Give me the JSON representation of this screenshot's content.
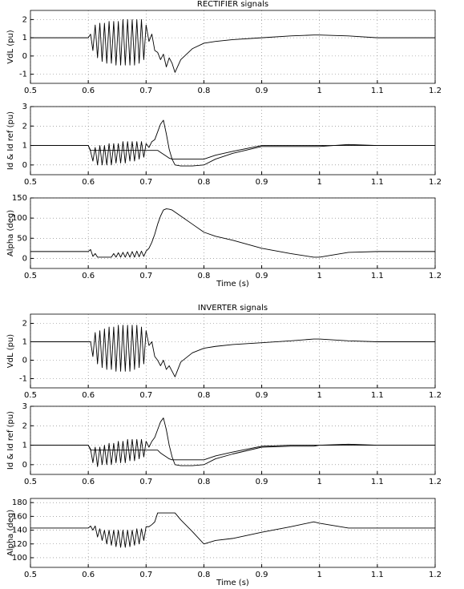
{
  "chart_data": [
    {
      "type": "line",
      "title": "RECTIFIER signals",
      "y_label": "VdL (pu)",
      "x": [
        0.5,
        0.6,
        0.604,
        0.608,
        0.612,
        0.616,
        0.62,
        0.624,
        0.628,
        0.632,
        0.636,
        0.64,
        0.644,
        0.648,
        0.652,
        0.656,
        0.66,
        0.664,
        0.668,
        0.672,
        0.676,
        0.68,
        0.684,
        0.688,
        0.692,
        0.696,
        0.7,
        0.705,
        0.71,
        0.715,
        0.72,
        0.725,
        0.73,
        0.735,
        0.74,
        0.745,
        0.75,
        0.76,
        0.78,
        0.8,
        0.82,
        0.85,
        0.9,
        0.95,
        0.99,
        1.0,
        1.05,
        1.1,
        1.2
      ],
      "series": [
        {
          "color": "#000000",
          "values": [
            1,
            1,
            1.2,
            0.3,
            1.7,
            -0.1,
            1.8,
            -0.3,
            1.8,
            -0.4,
            1.9,
            -0.4,
            1.9,
            -0.5,
            1.9,
            -0.5,
            2,
            -0.5,
            2,
            -0.5,
            2,
            -0.5,
            2,
            -0.4,
            2,
            -0.2,
            1.7,
            0.8,
            1.2,
            0.3,
            0.2,
            -0.2,
            0.1,
            -0.6,
            -0.1,
            -0.4,
            -0.9,
            -0.2,
            0.4,
            0.7,
            0.8,
            0.9,
            1.0,
            1.1,
            1.15,
            1.15,
            1.1,
            1.0,
            1.0
          ]
        }
      ],
      "xlim": [
        0.5,
        1.2
      ],
      "xticks": [
        0.5,
        0.6,
        0.7,
        0.8,
        0.9,
        1,
        1.1,
        1.2
      ],
      "ylim": [
        -1.5,
        2.5
      ],
      "yticks": [
        -1,
        0,
        1,
        2
      ],
      "grid": true
    },
    {
      "type": "line",
      "y_label": "Id & Id ref (pu)",
      "x": [
        0.5,
        0.6,
        0.604,
        0.608,
        0.612,
        0.616,
        0.62,
        0.624,
        0.628,
        0.632,
        0.636,
        0.64,
        0.644,
        0.648,
        0.652,
        0.656,
        0.66,
        0.664,
        0.668,
        0.672,
        0.676,
        0.68,
        0.684,
        0.688,
        0.692,
        0.696,
        0.7,
        0.705,
        0.71,
        0.715,
        0.72,
        0.725,
        0.73,
        0.735,
        0.74,
        0.745,
        0.75,
        0.76,
        0.78,
        0.8,
        0.82,
        0.85,
        0.9,
        0.95,
        0.99,
        1.0,
        1.05,
        1.1,
        1.2
      ],
      "series": [
        {
          "color": "#000000",
          "values": [
            1,
            1,
            0.7,
            0.2,
            0.9,
            0,
            1,
            0,
            1,
            0,
            1.1,
            0,
            1.1,
            0.1,
            1.1,
            0.1,
            1.2,
            0.1,
            1.2,
            0.2,
            1.2,
            0.2,
            1.2,
            0.3,
            1.2,
            0.4,
            1.1,
            0.9,
            1.2,
            1.3,
            1.7,
            2.1,
            2.3,
            1.6,
            0.8,
            0.3,
            0,
            -0.05,
            -0.05,
            0,
            0.3,
            0.6,
            0.95,
            0.95,
            0.95,
            0.95,
            1.05,
            1.0,
            1.0
          ]
        },
        {
          "color": "#000000",
          "values": [
            1,
            1,
            0.75,
            0.75,
            0.75,
            0.75,
            0.75,
            0.75,
            0.75,
            0.75,
            0.75,
            0.75,
            0.75,
            0.75,
            0.75,
            0.75,
            0.75,
            0.75,
            0.75,
            0.75,
            0.75,
            0.75,
            0.75,
            0.75,
            0.75,
            0.75,
            0.75,
            0.75,
            0.75,
            0.75,
            0.75,
            0.65,
            0.55,
            0.45,
            0.35,
            0.3,
            0.3,
            0.3,
            0.3,
            0.3,
            0.5,
            0.7,
            1,
            1,
            1,
            1,
            1,
            1,
            1
          ]
        }
      ],
      "xlim": [
        0.5,
        1.2
      ],
      "xticks": [
        0.5,
        0.6,
        0.7,
        0.8,
        0.9,
        1,
        1.1,
        1.2
      ],
      "ylim": [
        -0.5,
        3
      ],
      "yticks": [
        0,
        1,
        2,
        3
      ],
      "grid": true
    },
    {
      "type": "line",
      "y_label": "Alpha (deg)",
      "x_label": "Time (s)",
      "x": [
        0.5,
        0.6,
        0.604,
        0.608,
        0.612,
        0.616,
        0.62,
        0.624,
        0.628,
        0.632,
        0.636,
        0.64,
        0.644,
        0.648,
        0.652,
        0.656,
        0.66,
        0.664,
        0.668,
        0.672,
        0.676,
        0.68,
        0.684,
        0.688,
        0.692,
        0.696,
        0.7,
        0.705,
        0.71,
        0.715,
        0.72,
        0.725,
        0.73,
        0.735,
        0.74,
        0.745,
        0.75,
        0.76,
        0.78,
        0.8,
        0.82,
        0.85,
        0.9,
        0.95,
        0.99,
        1.0,
        1.05,
        1.1,
        1.2
      ],
      "series": [
        {
          "color": "#000000",
          "values": [
            17,
            17,
            22,
            5,
            12,
            3,
            3,
            3,
            3,
            3,
            3,
            3,
            12,
            3,
            14,
            3,
            15,
            3,
            16,
            3,
            17,
            3,
            18,
            4,
            18,
            5,
            18,
            25,
            40,
            60,
            85,
            105,
            120,
            123,
            122,
            120,
            115,
            105,
            85,
            65,
            55,
            45,
            25,
            12,
            3,
            3,
            15,
            17,
            17
          ]
        }
      ],
      "xlim": [
        0.5,
        1.2
      ],
      "xticks": [
        0.5,
        0.6,
        0.7,
        0.8,
        0.9,
        1,
        1.1,
        1.2
      ],
      "ylim": [
        -25,
        150
      ],
      "yticks": [
        0,
        50,
        100,
        150
      ],
      "grid": true
    },
    {
      "type": "line",
      "title": "INVERTER signals",
      "y_label": "VdL (pu)",
      "x": [
        0.5,
        0.6,
        0.604,
        0.608,
        0.612,
        0.616,
        0.62,
        0.624,
        0.628,
        0.632,
        0.636,
        0.64,
        0.644,
        0.648,
        0.652,
        0.656,
        0.66,
        0.664,
        0.668,
        0.672,
        0.676,
        0.68,
        0.684,
        0.688,
        0.692,
        0.696,
        0.7,
        0.705,
        0.71,
        0.715,
        0.72,
        0.725,
        0.73,
        0.735,
        0.74,
        0.745,
        0.75,
        0.76,
        0.78,
        0.8,
        0.82,
        0.85,
        0.9,
        0.95,
        0.99,
        1.0,
        1.05,
        1.1,
        1.2
      ],
      "series": [
        {
          "color": "#000000",
          "values": [
            1,
            1,
            1.0,
            0.2,
            1.5,
            -0.2,
            1.6,
            -0.4,
            1.7,
            -0.5,
            1.8,
            -0.5,
            1.8,
            -0.6,
            1.9,
            -0.6,
            1.9,
            -0.6,
            1.9,
            -0.6,
            1.9,
            -0.5,
            1.9,
            -0.4,
            1.8,
            -0.2,
            1.6,
            0.8,
            1.0,
            0.2,
            0,
            -0.3,
            0,
            -0.5,
            -0.3,
            -0.6,
            -0.9,
            -0.1,
            0.4,
            0.65,
            0.75,
            0.85,
            0.95,
            1.05,
            1.15,
            1.15,
            1.05,
            1.0,
            1.0
          ]
        }
      ],
      "xlim": [
        0.5,
        1.2
      ],
      "xticks": [
        0.5,
        0.6,
        0.7,
        0.8,
        0.9,
        1,
        1.1,
        1.2
      ],
      "ylim": [
        -1.5,
        2.5
      ],
      "yticks": [
        -1,
        0,
        1,
        2
      ],
      "grid": true
    },
    {
      "type": "line",
      "y_label": "Id & Id ref (pu)",
      "x": [
        0.5,
        0.6,
        0.604,
        0.608,
        0.612,
        0.616,
        0.62,
        0.624,
        0.628,
        0.632,
        0.636,
        0.64,
        0.644,
        0.648,
        0.652,
        0.656,
        0.66,
        0.664,
        0.668,
        0.672,
        0.676,
        0.68,
        0.684,
        0.688,
        0.692,
        0.696,
        0.7,
        0.705,
        0.71,
        0.715,
        0.72,
        0.725,
        0.73,
        0.735,
        0.74,
        0.745,
        0.75,
        0.76,
        0.78,
        0.8,
        0.82,
        0.85,
        0.9,
        0.95,
        0.99,
        1.0,
        1.05,
        1.1,
        1.2
      ],
      "series": [
        {
          "color": "#000000",
          "values": [
            1,
            1,
            0.8,
            0.1,
            0.9,
            -0.1,
            0.9,
            0,
            1,
            0,
            1.1,
            0,
            1.1,
            0.1,
            1.2,
            0.1,
            1.2,
            0.1,
            1.3,
            0.2,
            1.3,
            0.2,
            1.3,
            0.3,
            1.3,
            0.4,
            1.2,
            0.9,
            1.2,
            1.4,
            1.8,
            2.2,
            2.4,
            1.8,
            1.0,
            0.4,
            0,
            -0.05,
            -0.05,
            0,
            0.3,
            0.55,
            0.9,
            0.95,
            0.95,
            1.0,
            1.05,
            1.0,
            1.0
          ]
        },
        {
          "color": "#000000",
          "values": [
            1,
            1,
            0.75,
            0.75,
            0.75,
            0.75,
            0.75,
            0.75,
            0.75,
            0.75,
            0.75,
            0.75,
            0.75,
            0.75,
            0.75,
            0.75,
            0.75,
            0.75,
            0.75,
            0.75,
            0.75,
            0.75,
            0.75,
            0.75,
            0.75,
            0.75,
            0.75,
            0.75,
            0.75,
            0.75,
            0.75,
            0.6,
            0.5,
            0.4,
            0.3,
            0.25,
            0.25,
            0.25,
            0.25,
            0.25,
            0.45,
            0.65,
            0.95,
            1,
            1,
            1,
            1,
            1,
            1
          ]
        }
      ],
      "xlim": [
        0.5,
        1.2
      ],
      "xticks": [
        0.5,
        0.6,
        0.7,
        0.8,
        0.9,
        1,
        1.1,
        1.2
      ],
      "ylim": [
        -0.5,
        3
      ],
      "yticks": [
        0,
        1,
        2,
        3
      ],
      "grid": true
    },
    {
      "type": "line",
      "y_label": "Alpha (deg)",
      "x_label": "Time (s)",
      "x": [
        0.5,
        0.6,
        0.604,
        0.608,
        0.612,
        0.616,
        0.62,
        0.624,
        0.628,
        0.632,
        0.636,
        0.64,
        0.644,
        0.648,
        0.652,
        0.656,
        0.66,
        0.664,
        0.668,
        0.672,
        0.676,
        0.68,
        0.684,
        0.688,
        0.692,
        0.696,
        0.7,
        0.705,
        0.71,
        0.715,
        0.72,
        0.725,
        0.73,
        0.735,
        0.74,
        0.745,
        0.75,
        0.76,
        0.78,
        0.8,
        0.82,
        0.85,
        0.9,
        0.95,
        0.99,
        1.0,
        1.05,
        1.1,
        1.2
      ],
      "series": [
        {
          "color": "#000000",
          "values": [
            143,
            143,
            146,
            140,
            146,
            130,
            142,
            125,
            140,
            120,
            140,
            118,
            140,
            116,
            140,
            115,
            140,
            115,
            140,
            116,
            140,
            118,
            142,
            120,
            142,
            125,
            145,
            145,
            148,
            152,
            165,
            165,
            165,
            165,
            165,
            165,
            165,
            155,
            138,
            120,
            125,
            128,
            137,
            145,
            152,
            150,
            143,
            143,
            143
          ]
        }
      ],
      "xlim": [
        0.5,
        1.2
      ],
      "xticks": [
        0.5,
        0.6,
        0.7,
        0.8,
        0.9,
        1,
        1.1,
        1.2
      ],
      "ylim": [
        86,
        186
      ],
      "yticks": [
        100,
        120,
        140,
        160,
        180
      ],
      "grid": true
    }
  ]
}
